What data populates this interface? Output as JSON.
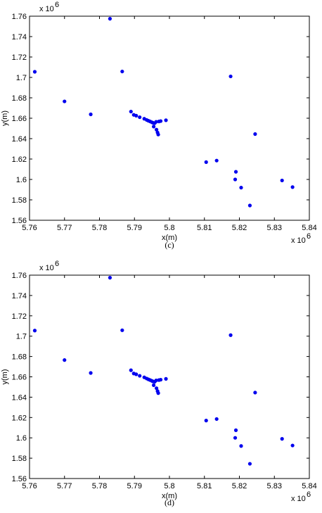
{
  "chart_data": [
    {
      "type": "scatter",
      "caption": "(c)",
      "xlabel": "x(m)",
      "ylabel": "y(m)",
      "x_exponent_label": "x 10",
      "x_exponent_power": "6",
      "y_exponent_label": "x 10",
      "y_exponent_power": "6",
      "xlim": [
        5.76,
        5.84
      ],
      "ylim": [
        1.56,
        1.76
      ],
      "xticks": [
        "5.76",
        "5.77",
        "5.78",
        "5.79",
        "5.8",
        "5.81",
        "5.82",
        "5.83",
        "5.84"
      ],
      "yticks": [
        "1.56",
        "1.58",
        "1.6",
        "1.62",
        "1.64",
        "1.66",
        "1.68",
        "1.7",
        "1.72",
        "1.74",
        "1.76"
      ],
      "marker_color": "#0000ee",
      "points": [
        [
          5.7615,
          1.7055
        ],
        [
          5.77,
          1.6765
        ],
        [
          5.7775,
          1.6638
        ],
        [
          5.783,
          1.7575
        ],
        [
          5.7865,
          1.7058
        ],
        [
          5.789,
          1.6665
        ],
        [
          5.7898,
          1.6633
        ],
        [
          5.7905,
          1.6625
        ],
        [
          5.7915,
          1.661
        ],
        [
          5.7928,
          1.6595
        ],
        [
          5.7935,
          1.6583
        ],
        [
          5.794,
          1.6575
        ],
        [
          5.7945,
          1.6568
        ],
        [
          5.795,
          1.656
        ],
        [
          5.7953,
          1.6555
        ],
        [
          5.7955,
          1.6518
        ],
        [
          5.7958,
          1.6552
        ],
        [
          5.7962,
          1.6565
        ],
        [
          5.7963,
          1.6488
        ],
        [
          5.7966,
          1.646
        ],
        [
          5.7968,
          1.644
        ],
        [
          5.797,
          1.6568
        ],
        [
          5.7975,
          1.6572
        ],
        [
          5.799,
          1.658
        ],
        [
          5.8105,
          1.617
        ],
        [
          5.8135,
          1.6185
        ],
        [
          5.8175,
          1.701
        ],
        [
          5.8188,
          1.6
        ],
        [
          5.819,
          1.6075
        ],
        [
          5.8205,
          1.592
        ],
        [
          5.823,
          1.5745
        ],
        [
          5.8245,
          1.6445
        ],
        [
          5.8322,
          1.599
        ],
        [
          5.8352,
          1.5925
        ]
      ]
    },
    {
      "type": "scatter",
      "caption": "(d)",
      "xlabel": "x(m)",
      "ylabel": "y(m)",
      "x_exponent_label": "x 10",
      "x_exponent_power": "6",
      "y_exponent_label": "x 10",
      "y_exponent_power": "6",
      "xlim": [
        5.76,
        5.84
      ],
      "ylim": [
        1.56,
        1.76
      ],
      "xticks": [
        "5.76",
        "5.77",
        "5.78",
        "5.79",
        "5.8",
        "5.81",
        "5.82",
        "5.83",
        "5.84"
      ],
      "yticks": [
        "1.56",
        "1.58",
        "1.6",
        "1.62",
        "1.64",
        "1.66",
        "1.68",
        "1.7",
        "1.72",
        "1.74",
        "1.76"
      ],
      "marker_color": "#0000ee",
      "points": [
        [
          5.7615,
          1.7055
        ],
        [
          5.77,
          1.6765
        ],
        [
          5.7775,
          1.6638
        ],
        [
          5.783,
          1.7575
        ],
        [
          5.7865,
          1.7058
        ],
        [
          5.789,
          1.6665
        ],
        [
          5.7898,
          1.6633
        ],
        [
          5.7905,
          1.6625
        ],
        [
          5.7915,
          1.661
        ],
        [
          5.7928,
          1.6595
        ],
        [
          5.7935,
          1.6583
        ],
        [
          5.794,
          1.6575
        ],
        [
          5.7945,
          1.6568
        ],
        [
          5.795,
          1.656
        ],
        [
          5.7953,
          1.6555
        ],
        [
          5.7955,
          1.6518
        ],
        [
          5.7958,
          1.6552
        ],
        [
          5.7962,
          1.6565
        ],
        [
          5.7963,
          1.6488
        ],
        [
          5.7966,
          1.646
        ],
        [
          5.7968,
          1.644
        ],
        [
          5.797,
          1.6568
        ],
        [
          5.7975,
          1.6572
        ],
        [
          5.799,
          1.658
        ],
        [
          5.8105,
          1.617
        ],
        [
          5.8135,
          1.6185
        ],
        [
          5.8175,
          1.701
        ],
        [
          5.8188,
          1.6
        ],
        [
          5.819,
          1.6075
        ],
        [
          5.8205,
          1.592
        ],
        [
          5.823,
          1.5745
        ],
        [
          5.8245,
          1.6445
        ],
        [
          5.8322,
          1.599
        ],
        [
          5.8352,
          1.5925
        ]
      ]
    }
  ]
}
